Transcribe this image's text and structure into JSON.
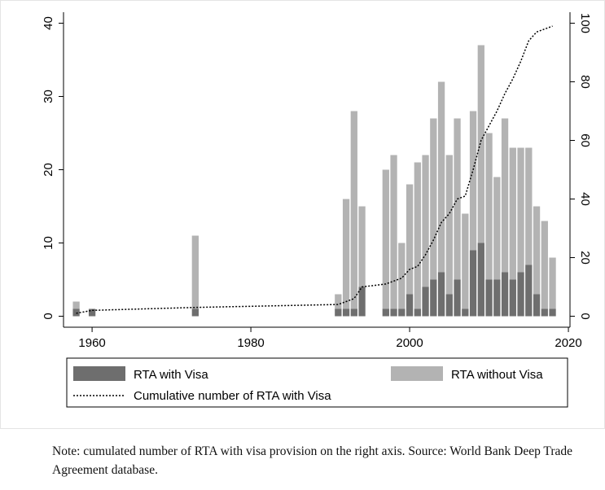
{
  "chart_data": {
    "type": "stacked-bar-line",
    "x": [
      1958,
      1960,
      1973,
      1991,
      1992,
      1993,
      1994,
      1997,
      1998,
      1999,
      2000,
      2001,
      2002,
      2003,
      2004,
      2005,
      2006,
      2007,
      2008,
      2009,
      2010,
      2011,
      2012,
      2013,
      2014,
      2015,
      2016,
      2017,
      2018
    ],
    "series": [
      {
        "name": "RTA with Visa",
        "color": "#6e6e6e",
        "values": [
          1,
          1,
          1,
          1,
          1,
          1,
          4,
          1,
          1,
          1,
          3,
          1,
          4,
          5,
          6,
          3,
          5,
          1,
          9,
          10,
          5,
          5,
          6,
          5,
          6,
          7,
          3,
          1,
          1
        ]
      },
      {
        "name": "RTA without Visa",
        "color": "#b3b3b3",
        "values": [
          1,
          0,
          10,
          2,
          15,
          27,
          11,
          19,
          21,
          9,
          15,
          20,
          18,
          22,
          26,
          19,
          22,
          13,
          19,
          27,
          20,
          14,
          21,
          18,
          17,
          16,
          12,
          12,
          7
        ]
      },
      {
        "name": "Cumulative number of RTA with Visa",
        "color": "#000000",
        "axis": "y2",
        "values": [
          1,
          2,
          3,
          4,
          5,
          6,
          10,
          11,
          12,
          13,
          16,
          17,
          21,
          26,
          32,
          35,
          40,
          41,
          50,
          60,
          65,
          70,
          76,
          81,
          87,
          94,
          97,
          98,
          99
        ]
      }
    ],
    "xlim": [
      1956.4,
      2020.2
    ],
    "xticks": [
      1960,
      1980,
      2000,
      2020
    ],
    "ylim": [
      -1.5,
      41.5
    ],
    "yticks": [
      0,
      10,
      20,
      30,
      40
    ],
    "y2lim": [
      -3.75,
      103.75
    ],
    "y2ticks": [
      0,
      20,
      40,
      60,
      80,
      100
    ],
    "legend": "bottom"
  },
  "note": "Note: cumulated number of RTA with visa provision on the right axis. Source: World Bank Deep Trade Agreement database."
}
